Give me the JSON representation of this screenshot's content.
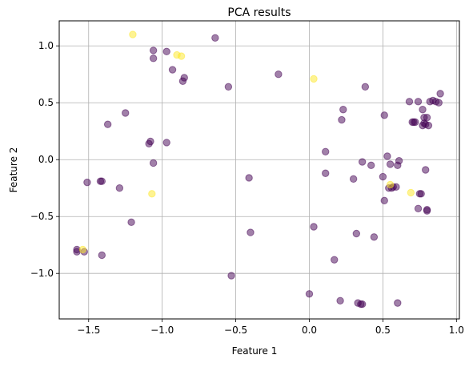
{
  "chart_data": {
    "type": "scatter",
    "title": "PCA results",
    "xlabel": "Feature 1",
    "ylabel": "Feature 2",
    "xlim": [
      -1.7,
      1.02
    ],
    "ylim": [
      -1.4,
      1.22
    ],
    "grid": true,
    "colors": {
      "class_0": "#440154",
      "class_1": "#fde725"
    },
    "point_alpha": 0.5,
    "xticks": [
      {
        "v": -1.5,
        "label": "−1.5"
      },
      {
        "v": -1.0,
        "label": "−1.0"
      },
      {
        "v": -0.5,
        "label": "−0.5"
      },
      {
        "v": 0.0,
        "label": "0.0"
      },
      {
        "v": 0.5,
        "label": "0.5"
      },
      {
        "v": 1.0,
        "label": "1.0"
      }
    ],
    "yticks": [
      {
        "v": -1.0,
        "label": "−1.0"
      },
      {
        "v": -0.5,
        "label": "−0.5"
      },
      {
        "v": 0.0,
        "label": "0.0"
      },
      {
        "v": 0.5,
        "label": "0.5"
      },
      {
        "v": 1.0,
        "label": "1.0"
      }
    ],
    "series": [
      {
        "class": 0,
        "points": [
          [
            -1.58,
            -0.79
          ],
          [
            -1.58,
            -0.81
          ],
          [
            -1.53,
            -0.81
          ],
          [
            -1.51,
            -0.2
          ],
          [
            -1.42,
            -0.19
          ],
          [
            -1.41,
            -0.19
          ],
          [
            -1.41,
            -0.84
          ],
          [
            -1.37,
            0.31
          ],
          [
            -1.29,
            -0.25
          ],
          [
            -1.25,
            0.41
          ],
          [
            -1.21,
            -0.55
          ],
          [
            -1.09,
            0.14
          ],
          [
            -1.08,
            0.16
          ],
          [
            -1.06,
            -0.03
          ],
          [
            -1.06,
            0.96
          ],
          [
            -1.06,
            0.89
          ],
          [
            -0.97,
            0.15
          ],
          [
            -0.97,
            0.95
          ],
          [
            -0.93,
            0.79
          ],
          [
            -0.86,
            0.69
          ],
          [
            -0.85,
            0.72
          ],
          [
            -0.64,
            1.07
          ],
          [
            -0.55,
            0.64
          ],
          [
            -0.53,
            -1.02
          ],
          [
            -0.41,
            -0.16
          ],
          [
            -0.4,
            -0.64
          ],
          [
            -0.21,
            0.75
          ],
          [
            0.0,
            -1.18
          ],
          [
            0.03,
            -0.59
          ],
          [
            0.11,
            0.07
          ],
          [
            0.11,
            -0.12
          ],
          [
            0.17,
            -0.88
          ],
          [
            0.21,
            -1.24
          ],
          [
            0.22,
            0.35
          ],
          [
            0.23,
            0.44
          ],
          [
            0.3,
            -0.17
          ],
          [
            0.32,
            -0.65
          ],
          [
            0.33,
            -1.26
          ],
          [
            0.35,
            -1.27
          ],
          [
            0.36,
            -1.27
          ],
          [
            0.36,
            -0.02
          ],
          [
            0.38,
            0.64
          ],
          [
            0.42,
            -0.05
          ],
          [
            0.44,
            -0.68
          ],
          [
            0.5,
            -0.15
          ],
          [
            0.51,
            0.39
          ],
          [
            0.51,
            -0.36
          ],
          [
            0.53,
            0.03
          ],
          [
            0.54,
            -0.25
          ],
          [
            0.55,
            -0.04
          ],
          [
            0.56,
            -0.25
          ],
          [
            0.57,
            -0.24
          ],
          [
            0.59,
            -0.24
          ],
          [
            0.6,
            -0.05
          ],
          [
            0.6,
            -1.26
          ],
          [
            0.61,
            -0.01
          ],
          [
            0.68,
            0.51
          ],
          [
            0.7,
            0.33
          ],
          [
            0.71,
            0.33
          ],
          [
            0.72,
            0.33
          ],
          [
            0.74,
            0.51
          ],
          [
            0.74,
            -0.43
          ],
          [
            0.75,
            -0.3
          ],
          [
            0.76,
            -0.3
          ],
          [
            0.77,
            0.3
          ],
          [
            0.77,
            0.44
          ],
          [
            0.78,
            0.32
          ],
          [
            0.78,
            0.37
          ],
          [
            0.79,
            0.31
          ],
          [
            0.79,
            -0.09
          ],
          [
            0.8,
            -0.44
          ],
          [
            0.8,
            -0.45
          ],
          [
            0.8,
            0.37
          ],
          [
            0.81,
            0.3
          ],
          [
            0.82,
            0.51
          ],
          [
            0.84,
            0.52
          ],
          [
            0.86,
            0.51
          ],
          [
            0.88,
            0.5
          ],
          [
            0.89,
            0.58
          ]
        ]
      },
      {
        "class": 1,
        "points": [
          [
            -1.2,
            1.1
          ],
          [
            -0.9,
            0.92
          ],
          [
            -0.87,
            0.91
          ],
          [
            -1.07,
            -0.3
          ],
          [
            -1.54,
            -0.79
          ],
          [
            0.03,
            0.71
          ],
          [
            0.55,
            -0.22
          ],
          [
            0.69,
            -0.29
          ]
        ]
      }
    ]
  }
}
